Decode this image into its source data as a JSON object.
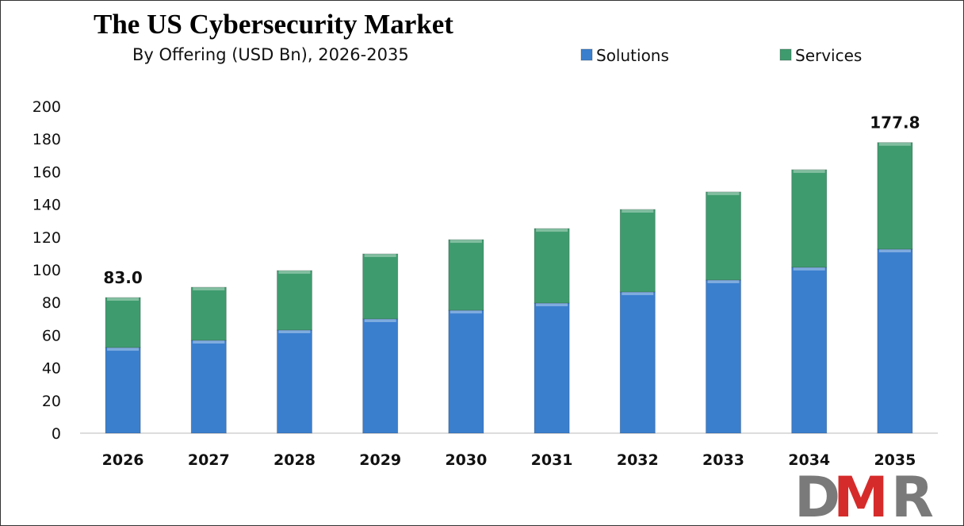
{
  "chart_data": {
    "type": "bar",
    "stacked": true,
    "title": "The US Cybersecurity Market",
    "subtitle": "By Offering (USD Bn), 2026-2035",
    "categories": [
      "2026",
      "2027",
      "2028",
      "2029",
      "2030",
      "2031",
      "2032",
      "2033",
      "2034",
      "2035"
    ],
    "series": [
      {
        "name": "Solutions",
        "color": "#3a7fce",
        "values": [
          52.4,
          56.8,
          63.1,
          69.9,
          75.2,
          79.6,
          86.4,
          93.7,
          101.5,
          112.6
        ]
      },
      {
        "name": "Services",
        "color": "#3e9b6e",
        "values": [
          30.6,
          32.5,
          36.4,
          39.8,
          43.2,
          45.6,
          50.5,
          53.9,
          59.7,
          65.2
        ]
      }
    ],
    "data_labels": [
      {
        "category": "2026",
        "text": "83.0"
      },
      {
        "category": "2035",
        "text": "177.8"
      }
    ],
    "ylim": [
      0,
      200
    ],
    "yticks": [
      0,
      20,
      40,
      60,
      80,
      100,
      120,
      140,
      160,
      180,
      200
    ],
    "grid": false,
    "legend": "top-right",
    "xlabel": "",
    "ylabel": ""
  },
  "logo": {
    "text": "DMR",
    "colors": [
      "#7a7a7a",
      "#d62b2b",
      "#7a7a7a"
    ]
  }
}
